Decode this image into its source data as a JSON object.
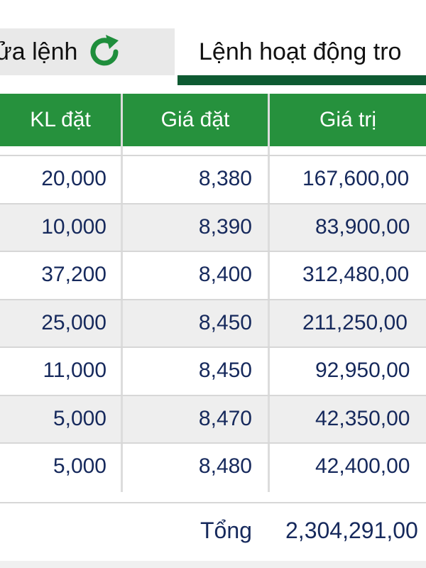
{
  "tabs": {
    "left_label": "ửa lệnh",
    "right_label": "Lệnh hoạt động tro"
  },
  "columns": [
    "KL đặt",
    "Giá đặt",
    "Giá trị"
  ],
  "rows": [
    {
      "qty": "20,000",
      "price": "8,380",
      "value": "167,600,00"
    },
    {
      "qty": "10,000",
      "price": "8,390",
      "value": "83,900,00"
    },
    {
      "qty": "37,200",
      "price": "8,400",
      "value": "312,480,00"
    },
    {
      "qty": "25,000",
      "price": "8,450",
      "value": "211,250,00"
    },
    {
      "qty": "11,000",
      "price": "8,450",
      "value": "92,950,00"
    },
    {
      "qty": "5,000",
      "price": "8,470",
      "value": "42,350,00"
    },
    {
      "qty": "5,000",
      "price": "8,480",
      "value": "42,400,00"
    }
  ],
  "total": {
    "label": "Tổng",
    "value": "2,304,291,00"
  },
  "colors": {
    "header_green": "#26913d",
    "active_tab_underline": "#0e5a32",
    "value_text": "#16295c",
    "row_alt": "#eeeeee"
  }
}
